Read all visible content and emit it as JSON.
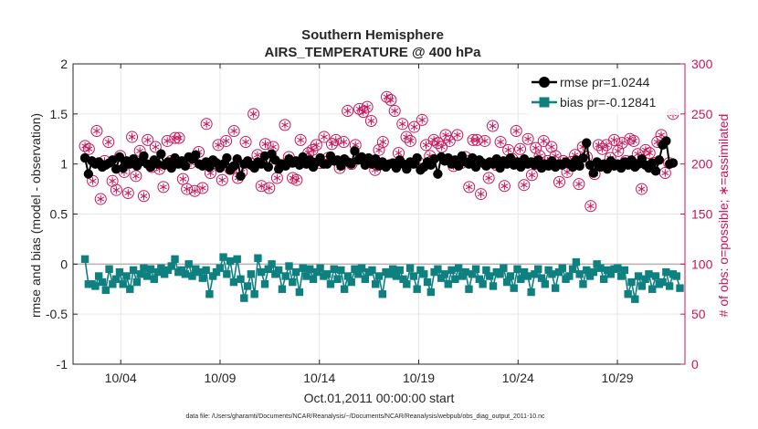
{
  "chart_data": {
    "type": "line",
    "title_line1": "Southern Hemisphere",
    "title_line2": "AIRS_TEMPERATURE @ 400 hPa",
    "xlabel": "Oct.01,2011 00:00:00 start",
    "ylabel_left": "rmse and bias (model - observation)",
    "ylabel_right": "# of obs: o=possible; ∗=assimilated",
    "footnote": "data file: /Users/gharamti/Documents/NCAR/Reanalysis/~/Documents/NCAR/Reanalysis/webpub/obs_diag_output_2011-10.nc",
    "x_ticks": [
      {
        "x": 4,
        "label": "10/04"
      },
      {
        "x": 9,
        "label": "10/09"
      },
      {
        "x": 14,
        "label": "10/14"
      },
      {
        "x": 19,
        "label": "10/19"
      },
      {
        "x": 24,
        "label": "10/24"
      },
      {
        "x": 29,
        "label": "10/29"
      }
    ],
    "y_ticks_left": [
      {
        "v": 2,
        "label": "2"
      },
      {
        "v": 1.5,
        "label": "1.5"
      },
      {
        "v": 1,
        "label": "1"
      },
      {
        "v": 0.5,
        "label": "0.5"
      },
      {
        "v": 0,
        "label": "0"
      },
      {
        "v": -0.5,
        "label": "-0.5"
      },
      {
        "v": -1,
        "label": "-1"
      }
    ],
    "y_ticks_right": [
      {
        "v": 300,
        "label": "300"
      },
      {
        "v": 250,
        "label": "250"
      },
      {
        "v": 200,
        "label": "200"
      },
      {
        "v": 150,
        "label": "150"
      },
      {
        "v": 100,
        "label": "100"
      },
      {
        "v": 50,
        "label": "50"
      },
      {
        "v": 0,
        "label": "0"
      }
    ],
    "xlim": [
      1.6,
      32.4
    ],
    "ylim_left": [
      -1,
      2
    ],
    "ylim_right": [
      0,
      300
    ],
    "zero_line": 0,
    "series": [
      {
        "name": "rmse",
        "legend": "rmse pr=1.0244",
        "color": "#000000",
        "marker": "circle",
        "values": [
          1.06,
          0.9,
          1.03,
          1.0,
          1.02,
          0.97,
          0.99,
          1.01,
          1.04,
          0.95,
          1.07,
          0.96,
          1.03,
          1.0,
          1.05,
          0.98,
          1.02,
          1.08,
          1.0,
          0.97,
          1.04,
          1.0,
          1.1,
          0.99,
          1.02,
          0.96,
          1.06,
          1.0,
          1.03,
          0.98,
          1.07,
          1.05,
          1.09,
          1.0,
          0.98,
          1.02,
          0.97,
          1.04,
          1.01,
          0.96,
          1.0,
          1.06,
          0.94,
          0.98,
          1.05,
          0.88,
          1.0,
          1.03,
          0.99,
          0.96,
          1.02,
          1.0,
          1.08,
          0.97,
          1.1,
          1.04,
          0.95,
          1.0,
          0.98,
          1.05,
          1.01,
          1.03,
          0.99,
          1.07,
          1.0,
          1.04,
          0.97,
          1.02,
          1.06,
          1.0,
          1.0,
          1.08,
          1.03,
          1.04,
          0.98,
          1.05,
          1.02,
          1.0,
          1.13,
          1.04,
          1.07,
          0.99,
          1.06,
          1.0,
          1.05,
          0.98,
          1.02,
          0.97,
          1.0,
          1.01,
          0.96,
          1.04,
          1.0,
          0.95,
          1.02,
          1.0,
          1.06,
          0.94,
          0.97,
          1.02,
          0.99,
          1.05,
          0.9,
          1.07,
          1.03,
          1.06,
          1.0,
          1.04,
          0.98,
          1.08,
          1.02,
          1.0,
          1.06,
          0.97,
          1.04,
          1.01,
          0.98,
          1.02,
          1.0,
          1.05,
          0.96,
          1.03,
          1.0,
          1.06,
          0.99,
          1.02,
          0.97,
          1.05,
          1.0,
          1.02,
          0.99,
          1.04,
          0.96,
          1.0,
          0.98,
          1.03,
          0.97,
          1.0,
          0.99,
          1.02,
          1.0,
          0.97,
          1.04,
          0.98,
          1.06,
          1.21,
          0.99,
          0.91,
          1.02,
          0.97,
          1.0,
          0.95,
          1.03,
          0.98,
          1.0,
          0.96,
          1.02,
          0.99,
          1.04,
          0.97,
          1.0,
          1.05,
          0.99,
          0.96,
          1.01,
          0.93,
          1.04,
          1.19,
          1.23,
          1.0,
          1.01
        ]
      },
      {
        "name": "bias",
        "legend": "bias pr=-0.12841",
        "color": "#0f8080",
        "marker": "square",
        "values": [
          0.05,
          -0.2,
          -0.2,
          -0.22,
          -0.12,
          -0.18,
          -0.26,
          -0.05,
          -0.2,
          -0.15,
          -0.08,
          -0.2,
          -0.12,
          -0.25,
          -0.06,
          -0.18,
          -0.1,
          -0.04,
          -0.12,
          -0.05,
          -0.15,
          -0.08,
          -0.04,
          -0.1,
          -0.06,
          -0.02,
          0.05,
          -0.08,
          -0.06,
          -0.1,
          0.0,
          -0.12,
          -0.05,
          -0.08,
          -0.14,
          -0.06,
          -0.3,
          -0.12,
          -0.08,
          -0.04,
          0.07,
          -0.1,
          0.03,
          -0.18,
          0.05,
          -0.15,
          -0.34,
          -0.22,
          -0.1,
          -0.3,
          0.06,
          -0.08,
          -0.2,
          -0.05,
          0.0,
          -0.1,
          -0.06,
          -0.25,
          -0.12,
          -0.02,
          -0.18,
          -0.08,
          -0.28,
          -0.04,
          -0.12,
          -0.05,
          -0.15,
          -0.08,
          -0.04,
          -0.12,
          -0.1,
          -0.2,
          -0.05,
          -0.15,
          -0.06,
          -0.25,
          -0.12,
          -0.18,
          -0.05,
          -0.1,
          -0.04,
          -0.15,
          -0.08,
          -0.06,
          -0.2,
          -0.12,
          -0.3,
          -0.08,
          -0.1,
          -0.05,
          -0.12,
          -0.06,
          -0.15,
          -0.2,
          -0.04,
          -0.12,
          -0.25,
          -0.06,
          -0.1,
          -0.18,
          -0.28,
          -0.08,
          -0.05,
          -0.14,
          -0.1,
          -0.2,
          -0.06,
          -0.15,
          -0.04,
          -0.12,
          -0.08,
          -0.25,
          -0.1,
          -0.05,
          -0.15,
          -0.2,
          -0.06,
          -0.12,
          -0.22,
          -0.08,
          -0.1,
          -0.04,
          -0.18,
          -0.12,
          -0.24,
          -0.05,
          -0.15,
          -0.08,
          -0.12,
          -0.28,
          -0.1,
          -0.05,
          -0.14,
          -0.2,
          -0.06,
          -0.1,
          -0.24,
          -0.08,
          -0.04,
          -0.15,
          -0.12,
          -0.05,
          0.02,
          -0.1,
          -0.2,
          -0.06,
          -0.12,
          -0.08,
          0.0,
          -0.04,
          -0.15,
          -0.06,
          -0.1,
          -0.05,
          -0.04,
          -0.12,
          -0.06,
          -0.3,
          -0.18,
          -0.35,
          -0.12,
          -0.22,
          -0.15,
          -0.1,
          -0.25,
          -0.12,
          -0.2,
          -0.18,
          -0.08,
          -0.22,
          -0.1,
          -0.12,
          -0.24
        ]
      },
      {
        "name": "possible",
        "color": "#c8145a",
        "marker": "circle-open",
        "values": [
          218,
          215,
          183,
          233,
          165,
          203,
          222,
          183,
          174,
          208,
          192,
          171,
          227,
          188,
          213,
          168,
          224,
          197,
          217,
          195,
          177,
          223,
          203,
          226,
          226,
          185,
          175,
          201,
          173,
          212,
          176,
          240,
          191,
          201,
          219,
          184,
          223,
          195,
          233,
          186,
          192,
          222,
          201,
          250,
          209,
          178,
          220,
          176,
          217,
          186,
          199,
          239,
          207,
          186,
          184,
          224,
          203,
          211,
          214,
          219,
          201,
          227,
          206,
          220,
          224,
          196,
          222,
          253,
          200,
          219,
          255,
          252,
          257,
          243,
          194,
          214,
          222,
          267,
          264,
          253,
          211,
          240,
          227,
          223,
          237,
          202,
          244,
          219,
          208,
          224,
          221,
          217,
          229,
          223,
          198,
          229,
          201,
          207,
          177,
          224,
          224,
          170,
          223,
          186,
          238,
          199,
          222,
          178,
          214,
          205,
          233,
          215,
          179,
          225,
          189,
          216,
          208,
          223,
          203,
          217,
          208,
          182,
          203,
          192,
          202,
          209,
          180,
          217,
          207,
          158,
          190,
          219,
          215,
          219,
          206,
          224,
          213,
          221,
          203,
          225,
          223,
          210,
          175,
          214,
          211,
          201,
          222,
          229,
          191,
          201,
          250
        ]
      },
      {
        "name": "assimilated",
        "color": "#c8145a",
        "marker": "asterisk",
        "values": [
          218,
          215,
          183,
          233,
          165,
          203,
          222,
          183,
          174,
          208,
          192,
          171,
          227,
          188,
          213,
          168,
          224,
          197,
          217,
          195,
          177,
          223,
          203,
          226,
          226,
          185,
          175,
          201,
          173,
          212,
          176,
          240,
          191,
          201,
          219,
          184,
          223,
          195,
          233,
          186,
          192,
          222,
          201,
          250,
          209,
          178,
          220,
          176,
          217,
          186,
          199,
          239,
          207,
          186,
          184,
          224,
          203,
          211,
          214,
          219,
          201,
          227,
          206,
          220,
          224,
          196,
          222,
          253,
          200,
          219,
          255,
          252,
          257,
          243,
          194,
          214,
          222,
          267,
          264,
          253,
          211,
          240,
          227,
          223,
          237,
          202,
          244,
          219,
          208,
          224,
          221,
          217,
          229,
          223,
          198,
          229,
          201,
          207,
          177,
          224,
          224,
          170,
          223,
          186,
          238,
          199,
          222,
          178,
          214,
          205,
          233,
          215,
          179,
          225,
          189,
          216,
          208,
          223,
          203,
          217,
          208,
          182,
          203,
          192,
          202,
          209,
          180,
          217,
          207,
          158,
          190,
          219,
          215,
          219,
          206,
          224,
          213,
          221,
          203,
          225,
          223,
          210,
          175,
          214,
          211,
          201,
          222,
          229,
          191,
          201,
          250
        ]
      }
    ]
  }
}
